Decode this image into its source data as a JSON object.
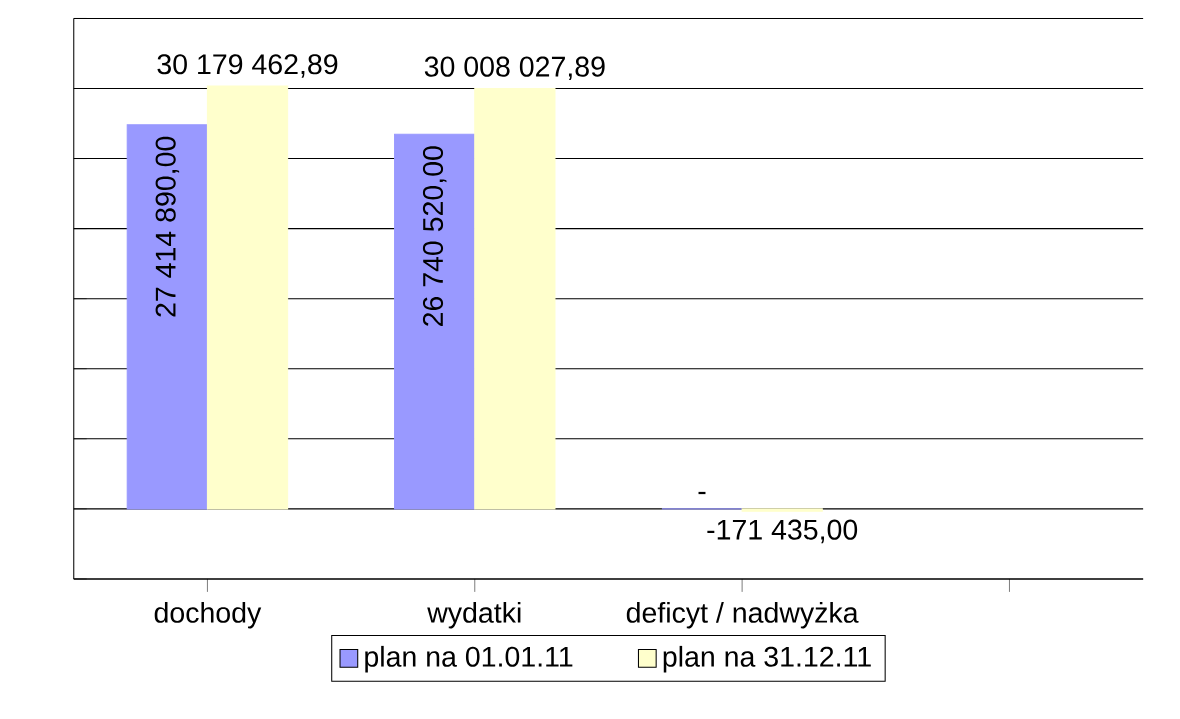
{
  "chart_data": {
    "type": "bar",
    "categories": [
      "dochody",
      "wydatki",
      "deficyt / nadwyżka",
      null
    ],
    "series": [
      {
        "name": "plan na 01.01.11",
        "color": "#9999ff",
        "values": [
          27414890.0,
          26740520.0,
          0,
          null
        ],
        "value_labels": [
          "27 414 890,00",
          "26 740 520,00",
          "-",
          null
        ]
      },
      {
        "name": "plan na 31.12.11",
        "color": "#ffffcc",
        "values": [
          30179462.89,
          30008027.89,
          -171435.0,
          null
        ],
        "value_labels": [
          "30 179 462,89",
          "30 008 027,89",
          "-171 435,00",
          null
        ]
      }
    ],
    "ylim": [
      -5000000,
      35000000
    ],
    "yticks": [
      {
        "value": -5000000,
        "label": null
      },
      {
        "value": 0,
        "label": null
      },
      {
        "value": 5000000,
        "label": null
      },
      {
        "value": 10000000,
        "label": null
      },
      {
        "value": 15000000,
        "label": null
      },
      {
        "value": 20000000,
        "label": null
      },
      {
        "value": 25000000,
        "label": null
      },
      {
        "value": 30000000,
        "label": null
      },
      {
        "value": 35000000,
        "label": null
      }
    ],
    "tick_labels": "x",
    "grid": "y",
    "legend": "bottom"
  }
}
